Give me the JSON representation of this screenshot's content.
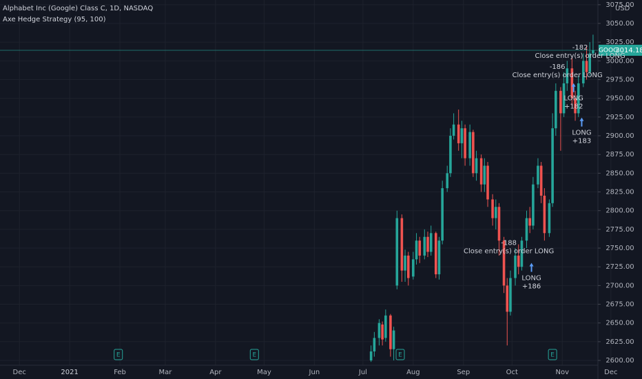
{
  "chart_data": {
    "type": "candlestick",
    "title": "Alphabet Inc (Google) Class C, 1D, NASDAQ",
    "subtitle": "Axe Hedge Strategy (95, 100)",
    "currency": "USD",
    "symbol": "GOOG",
    "up_color": "#26a69a",
    "down_color": "#ef5350",
    "x": [
      217,
      219,
      222,
      224,
      226,
      229,
      231,
      233,
      236,
      238,
      240,
      243,
      245,
      247,
      250,
      252,
      254,
      257,
      259,
      261,
      264,
      266,
      268,
      271,
      273,
      275,
      278,
      280,
      282,
      285,
      287,
      289,
      292,
      294,
      296,
      299,
      301,
      303,
      306,
      308,
      310,
      313,
      315,
      317,
      320,
      322,
      324,
      327,
      329,
      331,
      334,
      336,
      338,
      341,
      343,
      345,
      348,
      350,
      352,
      354
    ],
    "open": [
      2600,
      2612,
      2630,
      2648,
      2630,
      2660,
      2615,
      2700,
      2790,
      2720,
      2740,
      2712,
      2735,
      2760,
      2740,
      2765,
      2745,
      2770,
      2715,
      2760,
      2830,
      2850,
      2900,
      2915,
      2890,
      2910,
      2870,
      2905,
      2850,
      2870,
      2835,
      2860,
      2815,
      2790,
      2805,
      2760,
      2700,
      2665,
      2710,
      2740,
      2725,
      2760,
      2790,
      2780,
      2835,
      2860,
      2820,
      2770,
      2810,
      2910,
      2960,
      2930,
      2970,
      2990,
      2950,
      2930,
      2970,
      3000,
      2985,
      3010
    ],
    "high": [
      2620,
      2638,
      2655,
      2652,
      2668,
      2662,
      2645,
      2800,
      2795,
      2748,
      2745,
      2745,
      2770,
      2765,
      2775,
      2772,
      2780,
      2772,
      2765,
      2840,
      2860,
      2910,
      2930,
      2935,
      2920,
      2915,
      2915,
      2908,
      2880,
      2875,
      2870,
      2865,
      2822,
      2815,
      2810,
      2765,
      2710,
      2720,
      2750,
      2755,
      2765,
      2800,
      2805,
      2845,
      2870,
      2865,
      2830,
      2815,
      2930,
      2970,
      2965,
      2985,
      3000,
      3005,
      2960,
      2980,
      3010,
      3020,
      3025,
      3035
    ],
    "low": [
      2598,
      2605,
      2620,
      2620,
      2625,
      2605,
      2600,
      2695,
      2705,
      2705,
      2700,
      2708,
      2728,
      2730,
      2735,
      2738,
      2740,
      2710,
      2708,
      2755,
      2825,
      2845,
      2895,
      2880,
      2870,
      2860,
      2860,
      2845,
      2840,
      2825,
      2825,
      2805,
      2780,
      2775,
      2740,
      2690,
      2620,
      2660,
      2700,
      2715,
      2720,
      2750,
      2770,
      2775,
      2830,
      2810,
      2760,
      2765,
      2805,
      2900,
      2880,
      2925,
      2960,
      2940,
      2920,
      2925,
      2965,
      2975,
      2980,
      3005
    ],
    "close": [
      2612,
      2630,
      2650,
      2628,
      2660,
      2615,
      2640,
      2790,
      2720,
      2740,
      2710,
      2735,
      2760,
      2740,
      2765,
      2745,
      2770,
      2715,
      2760,
      2830,
      2850,
      2900,
      2915,
      2890,
      2910,
      2870,
      2905,
      2850,
      2870,
      2835,
      2860,
      2815,
      2790,
      2805,
      2760,
      2700,
      2665,
      2710,
      2740,
      2725,
      2760,
      2790,
      2780,
      2835,
      2860,
      2820,
      2770,
      2810,
      2910,
      2960,
      2930,
      2970,
      2990,
      2950,
      2930,
      2970,
      3000,
      2985,
      3010,
      3014.18
    ],
    "xlim": [
      -12,
      357
    ],
    "xticks": [
      {
        "value": 0,
        "label": "Dec"
      },
      {
        "value": 31,
        "label": "2021"
      },
      {
        "value": 62,
        "label": "Feb"
      },
      {
        "value": 90,
        "label": "Mar"
      },
      {
        "value": 121,
        "label": "Apr"
      },
      {
        "value": 151,
        "label": "May"
      },
      {
        "value": 182,
        "label": "Jun"
      },
      {
        "value": 212,
        "label": "Jul"
      },
      {
        "value": 243,
        "label": "Aug"
      },
      {
        "value": 274,
        "label": "Sep"
      },
      {
        "value": 304,
        "label": "Oct"
      },
      {
        "value": 335,
        "label": "Nov"
      },
      {
        "value": 365,
        "label": "Dec"
      }
    ],
    "ylim": [
      2593.6,
      3081.3
    ],
    "yticks": [
      {
        "value": 2600,
        "label": "2600.00"
      },
      {
        "value": 2625,
        "label": "2625.00"
      },
      {
        "value": 2650,
        "label": "2650.00"
      },
      {
        "value": 2675,
        "label": "2675.00"
      },
      {
        "value": 2700,
        "label": "2700.00"
      },
      {
        "value": 2725,
        "label": "2725.00"
      },
      {
        "value": 2750,
        "label": "2750.00"
      },
      {
        "value": 2775,
        "label": "2775.00"
      },
      {
        "value": 2800,
        "label": "2800.00"
      },
      {
        "value": 2825,
        "label": "2825.00"
      },
      {
        "value": 2850,
        "label": "2850.00"
      },
      {
        "value": 2875,
        "label": "2875.00"
      },
      {
        "value": 2900,
        "label": "2900.00"
      },
      {
        "value": 2925,
        "label": "2925.00"
      },
      {
        "value": 2950,
        "label": "2950.00"
      },
      {
        "value": 2975,
        "label": "2975.00"
      },
      {
        "value": 3000,
        "label": "3000.00"
      },
      {
        "value": 3025,
        "label": "3025.00"
      },
      {
        "value": 3050,
        "label": "3050.00"
      },
      {
        "value": 3075,
        "label": "3075.00"
      }
    ],
    "grid": true,
    "earnings": {
      "label": "E",
      "x": [
        61,
        145,
        235,
        329
      ]
    },
    "annotations": [
      {
        "x": 302,
        "y": 2757,
        "lines": [
          "-188",
          "Close entry(s) order LONG"
        ]
      },
      {
        "x": 316,
        "y": 2710,
        "lines": [
          "LONG",
          "+186"
        ]
      },
      {
        "x": 332,
        "y": 2992,
        "lines": [
          "-186",
          "Close entry(s) order LONG"
        ]
      },
      {
        "x": 342,
        "y": 2950,
        "lines": [
          "LONG",
          "+182"
        ]
      },
      {
        "x": 346,
        "y": 3018,
        "lines": [
          "-182",
          "Close entry(s) order LONG"
        ]
      },
      {
        "x": 347,
        "y": 2904,
        "lines": [
          "LONG",
          "+183"
        ]
      }
    ]
  }
}
